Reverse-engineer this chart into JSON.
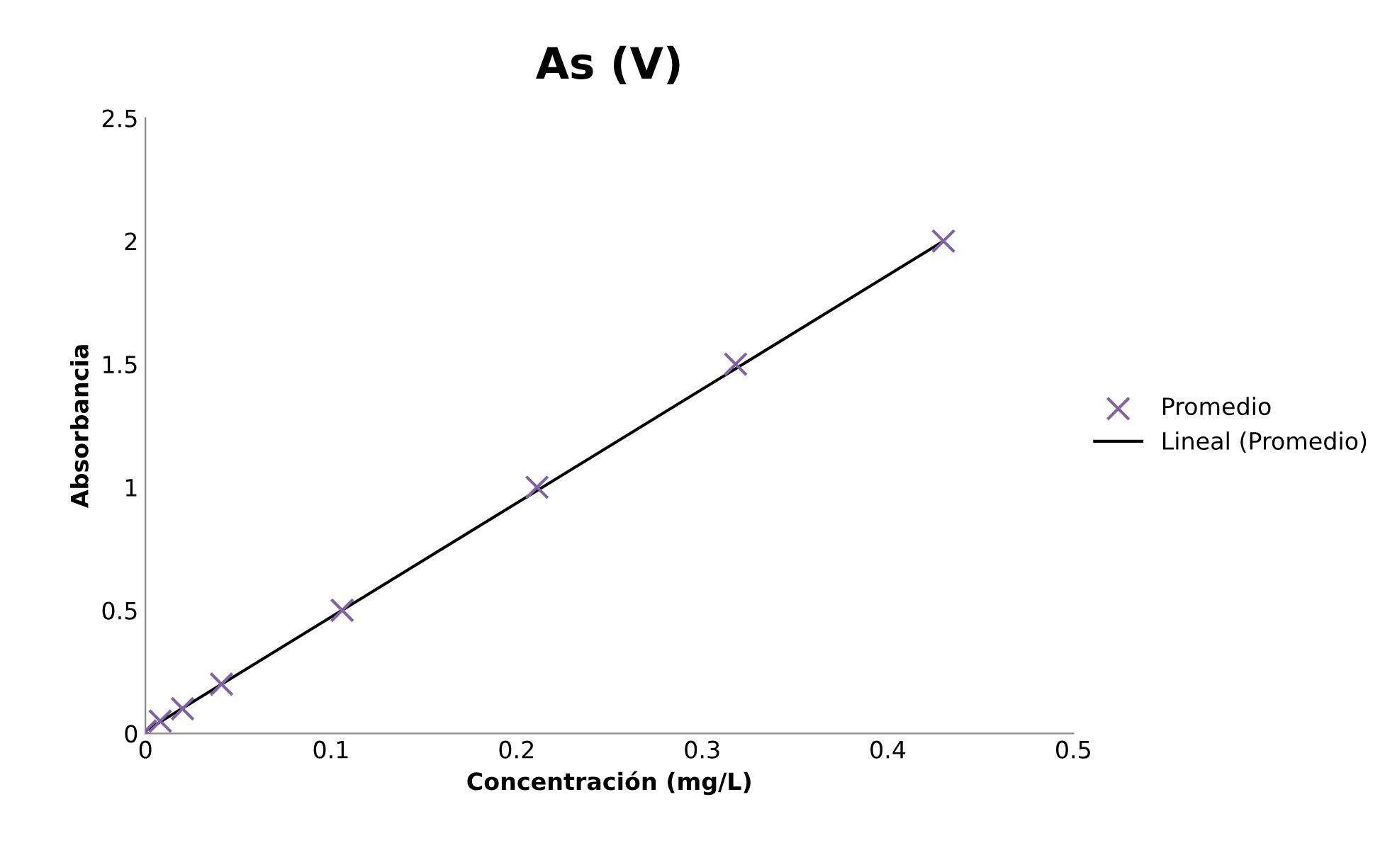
{
  "chart_data": {
    "type": "scatter",
    "title": "As (V)",
    "xlabel": "Concentración (mg/L)",
    "ylabel": "Absorbancia",
    "xlim": [
      0,
      0.5
    ],
    "xticks": [
      0,
      0.1,
      0.2,
      0.3,
      0.4,
      0.5
    ],
    "ylim": [
      0,
      2.5
    ],
    "yticks": [
      0,
      0.5,
      1,
      1.5,
      2,
      2.5
    ],
    "grid": false,
    "legend": "right",
    "series": [
      {
        "name": "Promedio",
        "marker": "cross",
        "color": "#8064a2",
        "x": [
          0,
          0.008,
          0.02,
          0.041,
          0.106,
          0.211,
          0.318,
          0.43
        ],
        "values": [
          0.01,
          0.05,
          0.1,
          0.2,
          0.5,
          1,
          1.5,
          2
        ]
      },
      {
        "name": "Lineal (Promedio)",
        "type": "line",
        "color": "#000000",
        "marker": "none",
        "line_style": "solid",
        "x": [
          0,
          0.43
        ],
        "values": [
          0.01,
          2
        ]
      }
    ]
  }
}
